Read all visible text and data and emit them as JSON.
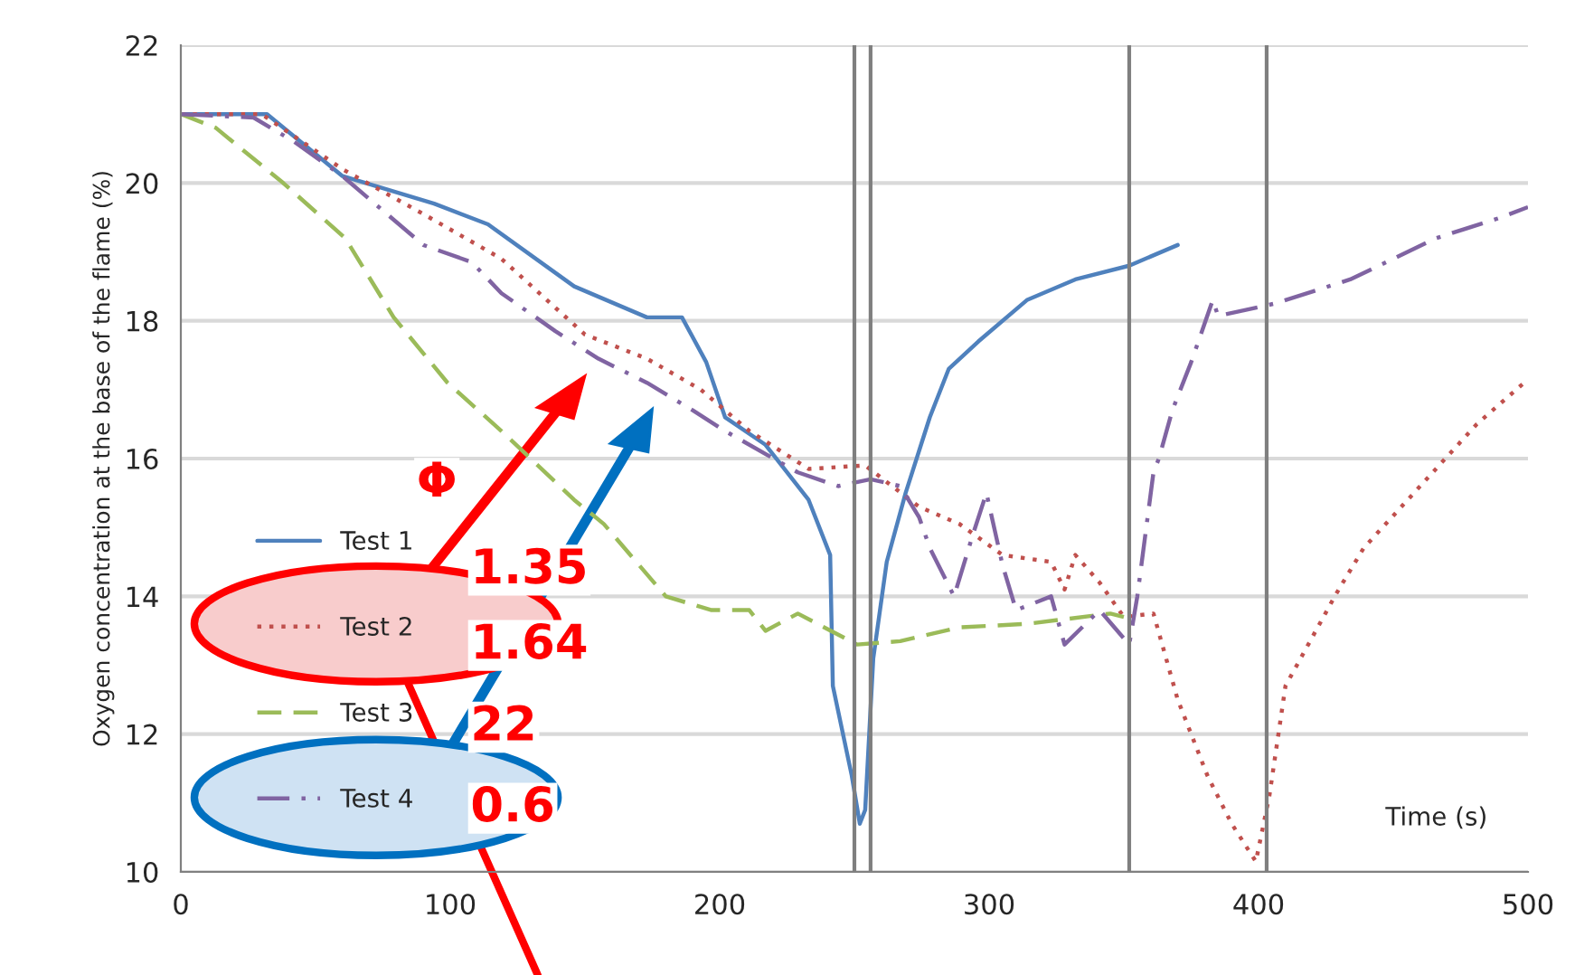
{
  "chart_data": {
    "type": "line",
    "ylabel": "Oxygen concentration at the base of the flame (%)",
    "xlabel": "Time (s)",
    "xlim": [
      0,
      500
    ],
    "xticks": [
      0,
      100,
      200,
      300,
      400,
      500
    ],
    "ylim": [
      10,
      22
    ],
    "yticks": [
      10,
      12,
      14,
      16,
      18,
      20,
      22
    ],
    "grid": "y",
    "legend": "left",
    "series": [
      {
        "name": "Test 1",
        "color": "#4f81bd",
        "line_style": "solid",
        "x": [
          0,
          32,
          60,
          94,
          114,
          146,
          173,
          186,
          195,
          202,
          217,
          233,
          241,
          242,
          249,
          252,
          254,
          257,
          262,
          269,
          278,
          285,
          296,
          314,
          332,
          352,
          370
        ],
        "values": [
          21,
          21,
          20.1,
          19.7,
          19.4,
          18.5,
          18.05,
          18.05,
          17.4,
          16.6,
          16.2,
          15.4,
          14.6,
          12.7,
          11.4,
          10.7,
          10.9,
          13.1,
          14.5,
          15.5,
          16.6,
          17.3,
          17.7,
          18.3,
          18.6,
          18.8,
          19.1
        ]
      },
      {
        "name": "Test 2",
        "color": "#c0504d",
        "line_style": "dotted",
        "x": [
          0,
          30,
          60,
          90,
          119,
          150,
          173,
          193,
          211,
          233,
          254,
          274,
          289,
          305,
          323,
          328,
          332,
          341,
          350,
          361,
          370,
          381,
          390,
          399,
          404,
          410,
          429,
          439,
          460,
          481,
          500
        ],
        "values": [
          21,
          21,
          20.2,
          19.55,
          18.9,
          17.8,
          17.45,
          17.0,
          16.4,
          15.85,
          15.9,
          15.3,
          15.05,
          14.6,
          14.5,
          14.1,
          14.6,
          14.2,
          13.7,
          13.75,
          12.5,
          11.4,
          10.7,
          10.15,
          11.1,
          12.7,
          14.05,
          14.7,
          15.6,
          16.5,
          17.15
        ]
      },
      {
        "name": "Test 3",
        "color": "#9bbb59",
        "line_style": "dashed",
        "x": [
          0,
          13,
          38,
          61,
          79,
          99,
          119,
          146,
          157,
          180,
          197,
          211,
          217,
          229,
          251,
          267,
          289,
          314,
          345,
          350
        ],
        "values": [
          21,
          20.8,
          20.0,
          19.2,
          18.05,
          17.1,
          16.4,
          15.4,
          15.05,
          14.0,
          13.8,
          13.8,
          13.5,
          13.75,
          13.3,
          13.35,
          13.55,
          13.6,
          13.75,
          13.7
        ]
      },
      {
        "name": "Test 4",
        "color": "#8064a2",
        "line_style": "dashdot",
        "x": [
          0,
          27,
          42,
          60,
          72,
          90,
          108,
          119,
          139,
          155,
          173,
          190,
          202,
          229,
          244,
          256,
          267,
          274,
          278,
          287,
          294,
          299,
          305,
          310,
          323,
          328,
          341,
          352,
          355,
          361,
          363,
          368,
          375,
          383,
          385,
          406,
          434,
          466,
          490,
          500
        ],
        "values": [
          21,
          20.95,
          20.6,
          20.1,
          19.7,
          19.1,
          18.85,
          18.4,
          17.85,
          17.45,
          17.1,
          16.7,
          16.4,
          15.8,
          15.6,
          15.7,
          15.6,
          15.15,
          14.7,
          14.0,
          14.9,
          15.5,
          14.45,
          13.8,
          14.0,
          13.3,
          13.8,
          13.3,
          14.0,
          15.8,
          16.0,
          16.7,
          17.4,
          18.3,
          18.07,
          18.25,
          18.6,
          19.2,
          19.5,
          19.65
        ]
      }
    ],
    "ref_lines": [
      {
        "axis": "x",
        "value": 250,
        "color": "#7f7f7f"
      },
      {
        "axis": "x",
        "value": 256,
        "color": "#7f7f7f"
      },
      {
        "axis": "x",
        "value": 352,
        "color": "#7f7f7f"
      },
      {
        "axis": "x",
        "value": 403,
        "color": "#7f7f7f"
      }
    ],
    "annotations": [
      "Φ",
      "1.35",
      "1.64",
      "22",
      "0.6"
    ]
  }
}
